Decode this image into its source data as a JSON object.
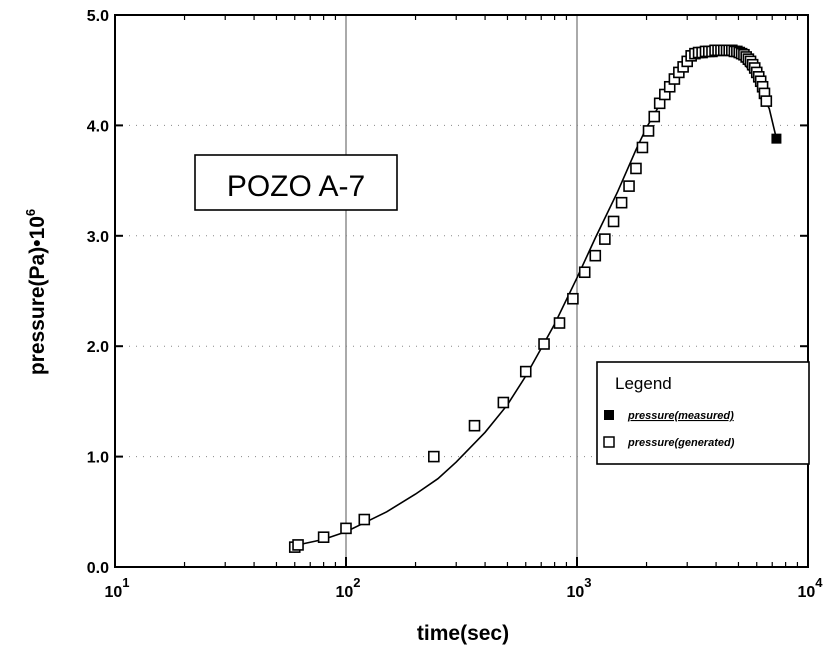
{
  "chart_data": {
    "type": "scatter",
    "title": "",
    "xlabel": "time(sec)",
    "ylabel_main": "pressure(Pa)",
    "ylabel_factor": "•10",
    "ylabel_exp": "6",
    "x_scale": "log",
    "xlim": [
      10,
      10000
    ],
    "ylim": [
      0.0,
      5.0
    ],
    "grid": "major x gridlines solid; dotted horizontal gridlines",
    "annotation": "POZO A-7",
    "x_ticks": [
      {
        "base": "10",
        "exp": "1",
        "value": 10
      },
      {
        "base": "10",
        "exp": "2",
        "value": 100
      },
      {
        "base": "10",
        "exp": "3",
        "value": 1000
      },
      {
        "base": "10",
        "exp": "4",
        "value": 10000
      }
    ],
    "y_ticks": [
      {
        "label": "0.0",
        "value": 0.0
      },
      {
        "label": "1.0",
        "value": 1.0
      },
      {
        "label": "2.0",
        "value": 2.0
      },
      {
        "label": "3.0",
        "value": 3.0
      },
      {
        "label": "4.0",
        "value": 4.0
      },
      {
        "label": "5.0",
        "value": 5.0
      }
    ],
    "legend": {
      "title": "Legend",
      "placement": "right-middle",
      "entries": [
        "pressure(measured)",
        "pressure(generated)"
      ]
    },
    "series": [
      {
        "name": "pressure(measured)",
        "marker": "line with filled squares at ends",
        "color": "#000000",
        "x": [
          62,
          80,
          100,
          120,
          150,
          200,
          250,
          300,
          400,
          500,
          600,
          700,
          800,
          1000,
          1200,
          1500,
          1800,
          2000,
          2200,
          2500,
          3000,
          3300,
          3700,
          4200,
          4700,
          5200,
          5800,
          6300,
          6800,
          7300
        ],
        "y": [
          0.2,
          0.25,
          0.32,
          0.4,
          0.5,
          0.66,
          0.8,
          0.95,
          1.22,
          1.47,
          1.73,
          1.98,
          2.2,
          2.62,
          2.98,
          3.4,
          3.78,
          3.98,
          4.13,
          4.33,
          4.58,
          4.65,
          4.67,
          4.68,
          4.67,
          4.58,
          4.45,
          4.3,
          4.15,
          3.88
        ]
      },
      {
        "name": "pressure(generated)",
        "marker": "hollow square",
        "color": "#000000",
        "x": [
          60,
          62,
          80,
          100,
          120,
          240,
          360,
          480,
          600,
          720,
          840,
          960,
          1080,
          1200,
          1320,
          1440,
          1560,
          1680,
          1800,
          1920,
          2040,
          2160,
          2280,
          2400,
          2520,
          2640,
          2760,
          2880,
          3000,
          3120,
          3240,
          3360,
          3480,
          3600,
          3720,
          3840,
          3960,
          4080,
          4200,
          4320,
          4440,
          4560,
          4680,
          4800,
          4920,
          5040,
          5160,
          5280,
          5400,
          5520,
          5640,
          5760,
          5880,
          6000,
          6120,
          6240,
          6360,
          6480,
          6600
        ],
        "y": [
          0.18,
          0.2,
          0.27,
          0.35,
          0.43,
          1.0,
          1.28,
          1.49,
          1.77,
          2.02,
          2.21,
          2.43,
          2.67,
          2.82,
          2.97,
          3.13,
          3.3,
          3.45,
          3.61,
          3.8,
          3.95,
          4.08,
          4.2,
          4.28,
          4.35,
          4.42,
          4.48,
          4.53,
          4.58,
          4.63,
          4.65,
          4.66,
          4.66,
          4.67,
          4.67,
          4.67,
          4.68,
          4.68,
          4.68,
          4.68,
          4.68,
          4.68,
          4.68,
          4.67,
          4.67,
          4.66,
          4.65,
          4.64,
          4.62,
          4.6,
          4.58,
          4.55,
          4.52,
          4.48,
          4.44,
          4.4,
          4.35,
          4.29,
          4.22
        ]
      }
    ]
  }
}
